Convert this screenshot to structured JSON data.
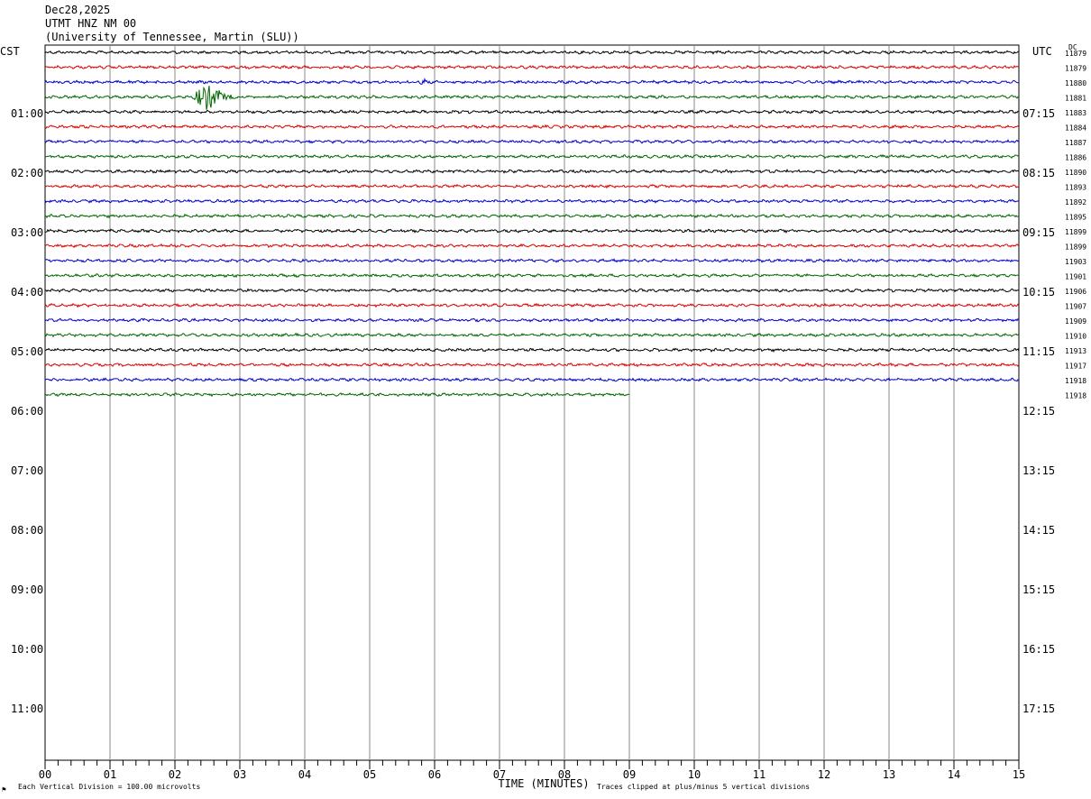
{
  "header": {
    "date": "Dec28,2025",
    "station": "UTMT HNZ NM 00",
    "network": "(University of Tennessee, Martin (SLU))"
  },
  "left_timezone": "CST",
  "right_timezone": "UTC",
  "dc_label": "DC",
  "footer": {
    "scale_note": "Each Vertical Division =  100.00 microvolts",
    "clip_note": "Traces clipped at plus/minus 5 vertical divisions",
    "corner_mark": "⚑"
  },
  "chart_data": {
    "type": "line",
    "xlabel": "TIME (MINUTES)",
    "xlim": [
      0,
      15
    ],
    "x_ticks": [
      "00",
      "01",
      "02",
      "03",
      "04",
      "05",
      "06",
      "07",
      "08",
      "09",
      "10",
      "11",
      "12",
      "13",
      "14",
      "15"
    ],
    "left_hour_labels": [
      "01:00",
      "02:00",
      "03:00",
      "04:00",
      "05:00",
      "06:00",
      "07:00",
      "08:00",
      "09:00",
      "10:00",
      "11:00"
    ],
    "right_hour_labels": [
      "07:15",
      "08:15",
      "09:15",
      "10:15",
      "11:15",
      "12:15",
      "13:15",
      "14:15",
      "15:15",
      "16:15",
      "17:15"
    ],
    "trace_colors": [
      "#000000",
      "#dd0000",
      "#0000cc",
      "#006600"
    ],
    "trace_dc_offsets": [
      "11879",
      "11879",
      "11880",
      "11881",
      "11883",
      "11884",
      "11887",
      "11886",
      "11890",
      "11893",
      "11892",
      "11895",
      "11899",
      "11899",
      "11903",
      "11901",
      "11906",
      "11907",
      "11909",
      "11910",
      "11913",
      "11917",
      "11918",
      "11918"
    ],
    "last_trace_end_minute": 9.0,
    "events": [
      {
        "trace_index": 3,
        "start_minute": 2.3,
        "end_minute": 3.2,
        "peak_minute": 2.5
      },
      {
        "trace_index": 2,
        "start_minute": 5.75,
        "end_minute": 5.95,
        "peak_minute": 5.85
      }
    ]
  }
}
